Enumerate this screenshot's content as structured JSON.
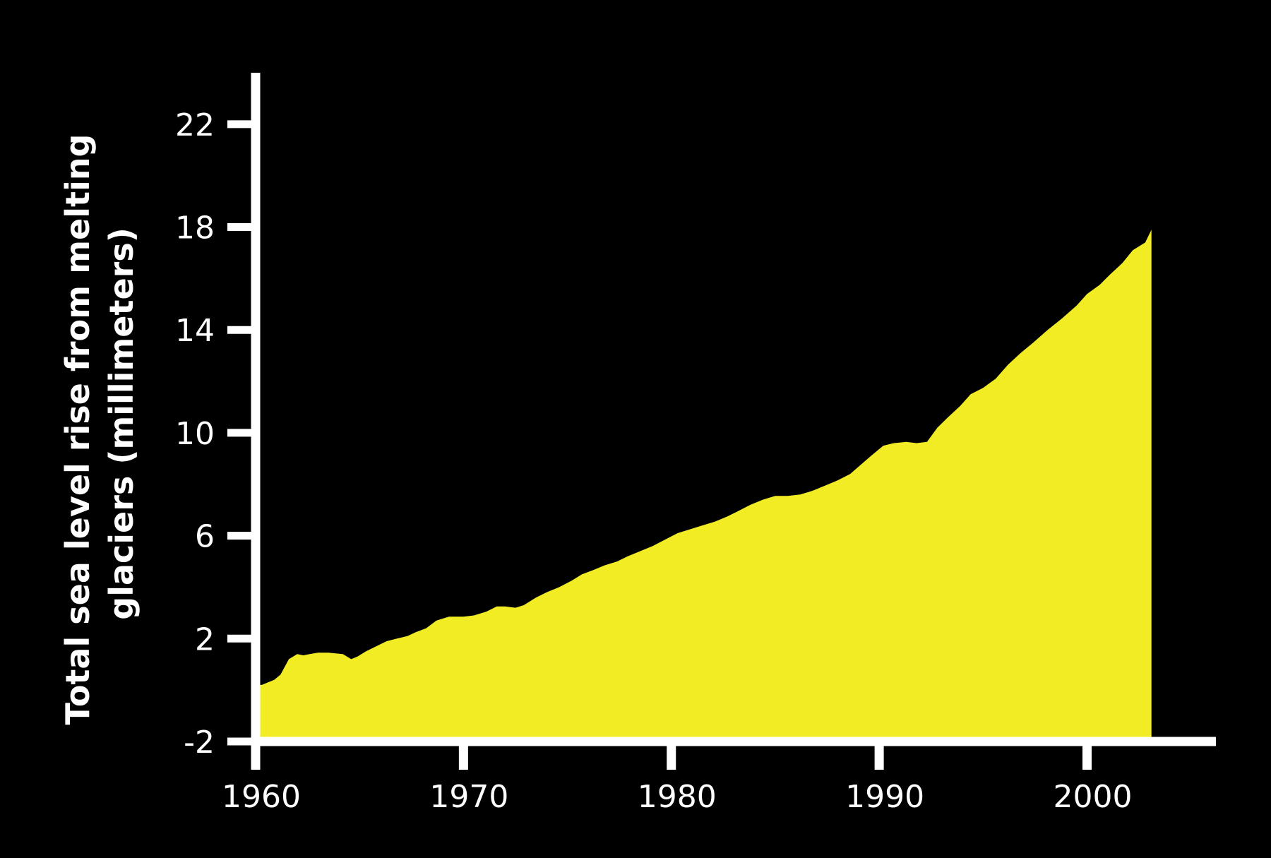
{
  "chart_data": {
    "type": "area",
    "title": "",
    "xlabel": "",
    "ylabel_lines": [
      "Total sea level rise from melting",
      "glaciers (millimeters)"
    ],
    "xlim": [
      1960,
      2006.2
    ],
    "ylim": [
      -2,
      24
    ],
    "x_ticks": [
      1960,
      1970,
      1980,
      1990,
      2000
    ],
    "y_ticks": [
      -2,
      2,
      6,
      10,
      14,
      18,
      22
    ],
    "grid": false,
    "legend": "none",
    "fill_color": "#f2ec24",
    "axis_color": "#ffffff",
    "background": "#000000",
    "series": [
      {
        "x": [
          1960.3,
          1960.9,
          1961.2,
          1961.6,
          1962.0,
          1962.3,
          1962.6,
          1963.0,
          1963.5,
          1964.2,
          1964.6,
          1964.9,
          1965.3,
          1965.8,
          1966.3,
          1966.8,
          1967.3,
          1967.7,
          1968.2,
          1968.7,
          1969.3,
          1970.0,
          1970.5,
          1971.1,
          1971.6,
          1972.0,
          1972.5,
          1972.9,
          1973.5,
          1974.0,
          1974.6,
          1975.2,
          1975.7,
          1976.2,
          1976.8,
          1977.4,
          1977.9,
          1978.5,
          1979.1,
          1979.7,
          1980.3,
          1980.9,
          1981.5,
          1982.1,
          1982.7,
          1983.2,
          1983.8,
          1984.4,
          1985.0,
          1985.6,
          1986.2,
          1986.8,
          1987.4,
          1988.0,
          1988.6,
          1989.1,
          1989.6,
          1990.2,
          1990.7,
          1991.3,
          1991.8,
          1992.3,
          1992.8,
          1993.3,
          1993.9,
          1994.4,
          1995.0,
          1995.6,
          1996.2,
          1996.8,
          1997.4,
          1998.1,
          1998.8,
          1999.5,
          2000.0,
          2000.6,
          2001.1,
          2001.7,
          2002.2,
          2002.8,
          2003.1
        ],
        "values": [
          0.2,
          0.4,
          0.6,
          1.2,
          1.4,
          1.35,
          1.4,
          1.45,
          1.45,
          1.4,
          1.2,
          1.3,
          1.5,
          1.7,
          1.9,
          2.0,
          2.1,
          2.25,
          2.4,
          2.7,
          2.85,
          2.85,
          2.9,
          3.05,
          3.25,
          3.25,
          3.2,
          3.3,
          3.6,
          3.8,
          4.0,
          4.25,
          4.5,
          4.65,
          4.85,
          5.0,
          5.2,
          5.4,
          5.6,
          5.85,
          6.1,
          6.25,
          6.4,
          6.55,
          6.75,
          6.95,
          7.2,
          7.4,
          7.55,
          7.55,
          7.6,
          7.75,
          7.95,
          8.15,
          8.4,
          8.75,
          9.1,
          9.5,
          9.6,
          9.65,
          9.6,
          9.65,
          10.2,
          10.6,
          11.05,
          11.5,
          11.75,
          12.1,
          12.65,
          13.1,
          13.5,
          14.0,
          14.45,
          14.95,
          15.4,
          15.75,
          16.15,
          16.6,
          17.1,
          17.4,
          17.9
        ]
      }
    ]
  }
}
